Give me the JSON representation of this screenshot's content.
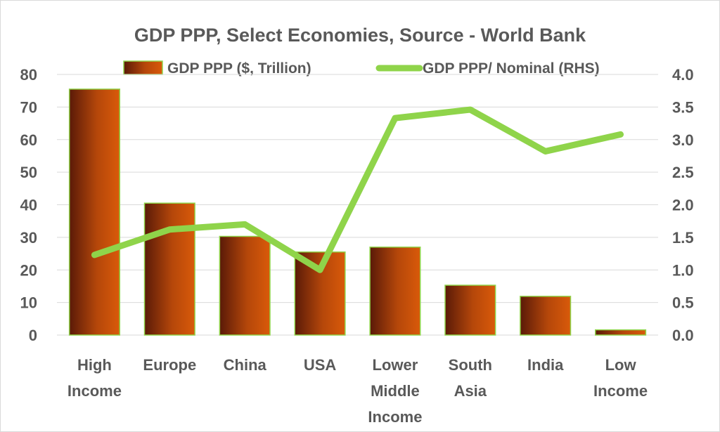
{
  "chart_data": {
    "type": "bar+line",
    "title": "GDP PPP, Select Economies, Source - World Bank",
    "categories": [
      [
        "High",
        "Income"
      ],
      [
        "Europe"
      ],
      [
        "China"
      ],
      [
        "USA"
      ],
      [
        "Lower",
        "Middle",
        "Income"
      ],
      [
        "South",
        "Asia"
      ],
      [
        "India"
      ],
      [
        "Low",
        "Income"
      ]
    ],
    "series": [
      {
        "name": "GDP PPP ($, Trillion)",
        "type": "bar",
        "axis": "left",
        "values": [
          75.5,
          40.5,
          30.3,
          25.5,
          27.0,
          15.3,
          11.9,
          1.6
        ]
      },
      {
        "name": "GDP PPP/ Nominal (RHS)",
        "type": "line",
        "axis": "right",
        "values": [
          1.23,
          1.62,
          1.7,
          1.0,
          3.33,
          3.46,
          2.82,
          3.08
        ]
      }
    ],
    "y_left": {
      "min": 0,
      "max": 80,
      "step": 10,
      "ticks": [
        "0",
        "10",
        "20",
        "30",
        "40",
        "50",
        "60",
        "70",
        "80"
      ]
    },
    "y_right": {
      "min": 0,
      "max": 4,
      "step": 0.5,
      "ticks": [
        "0.0",
        "0.5",
        "1.0",
        "1.5",
        "2.0",
        "2.5",
        "3.0",
        "3.5",
        "4.0"
      ]
    },
    "grid": true,
    "legend_position": "top",
    "colors": {
      "bar_dark": "#5a1a08",
      "bar_light": "#d95a0a",
      "bar_border": "#8fd44a",
      "line": "#8fd44a",
      "grid": "#d9d9d9",
      "text": "#595959"
    }
  }
}
